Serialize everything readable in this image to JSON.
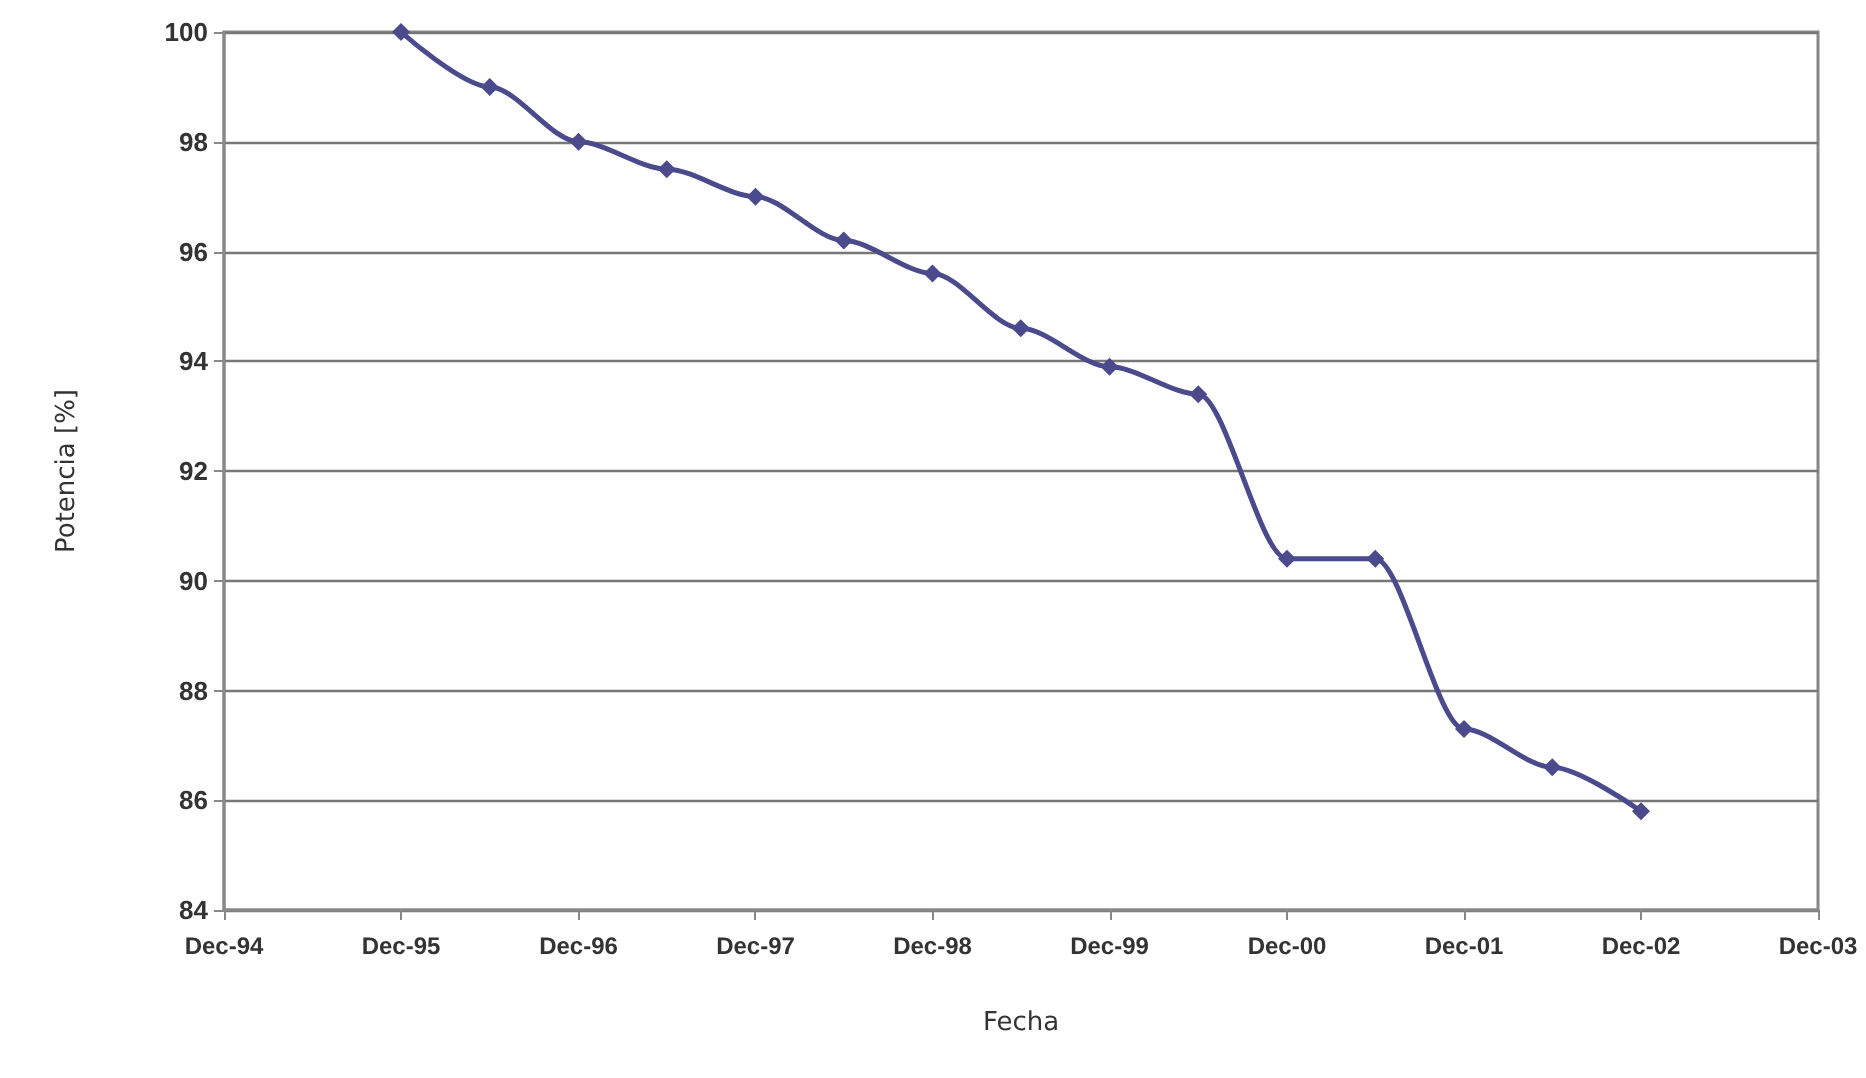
{
  "chart_data": {
    "type": "line",
    "xlabel": "Fecha",
    "ylabel": "Potencia [%]",
    "x": [
      "1995-12",
      "1996-06",
      "1996-12",
      "1997-06",
      "1997-12",
      "1998-06",
      "1998-12",
      "1999-06",
      "1999-12",
      "2000-06",
      "2000-12",
      "2001-06",
      "2001-12",
      "2002-06",
      "2002-12"
    ],
    "series": [
      {
        "color": "#4b4a8c",
        "values": [
          100,
          99,
          98,
          97.5,
          97,
          96.2,
          95.6,
          94.6,
          93.9,
          93.4,
          90.4,
          90.4,
          87.3,
          86.6,
          85.8
        ]
      }
    ],
    "xlim": [
      "1994-12",
      "2003-12"
    ],
    "xticks": [
      {
        "value": "1994-12",
        "label": "Dec-94"
      },
      {
        "value": "1995-12",
        "label": "Dec-95"
      },
      {
        "value": "1996-12",
        "label": "Dec-96"
      },
      {
        "value": "1997-12",
        "label": "Dec-97"
      },
      {
        "value": "1998-12",
        "label": "Dec-98"
      },
      {
        "value": "1999-12",
        "label": "Dec-99"
      },
      {
        "value": "2000-12",
        "label": "Dec-00"
      },
      {
        "value": "2001-12",
        "label": "Dec-01"
      },
      {
        "value": "2002-12",
        "label": "Dec-02"
      },
      {
        "value": "2003-12",
        "label": "Dec-03"
      }
    ],
    "ylim": [
      84,
      100
    ],
    "yticks": [
      84,
      86,
      88,
      90,
      92,
      94,
      96,
      98,
      100
    ],
    "grid": "y",
    "marker": "diamond",
    "line_style": "solid"
  }
}
